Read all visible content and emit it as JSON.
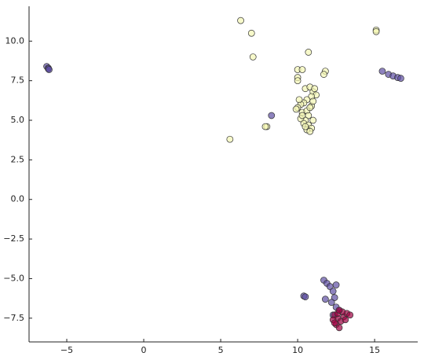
{
  "chart_data": {
    "type": "scatter",
    "xlim": [
      -7.45,
      17.8
    ],
    "ylim": [
      -9.0,
      12.2
    ],
    "xticks": [
      {
        "value": -5,
        "label": "−5"
      },
      0,
      5,
      10,
      15
    ],
    "yticks": [
      {
        "value": -7.5,
        "label": "−7.5"
      },
      {
        "value": -5,
        "label": "−5.0"
      },
      {
        "value": -2.5,
        "label": "−2.5"
      },
      {
        "value": 0,
        "label": "0.0"
      },
      2.5,
      {
        "value": 5,
        "label": "5.0"
      },
      7.5,
      {
        "value": 10,
        "label": "10.0"
      }
    ],
    "series": [
      {
        "color": "#f4f7b4",
        "x": [
          6.3,
          7.0,
          7.1,
          15.1,
          15.1,
          10.7,
          10.0,
          10.3,
          11.8,
          10.0,
          10.0,
          11.7,
          5.6,
          8.0,
          7.9,
          10.5,
          10.8,
          11.0,
          11.2,
          10.9,
          10.6,
          10.4,
          10.2,
          10.0,
          9.9,
          10.3,
          10.6,
          10.9,
          11.0,
          10.7,
          10.5,
          10.2,
          10.4,
          10.7,
          10.9,
          10.6,
          10.8,
          10.5,
          11.0,
          10.3,
          10.8,
          11.1,
          10.1
        ],
        "values": [
          11.3,
          10.5,
          9.0,
          10.7,
          10.6,
          9.3,
          8.2,
          8.2,
          8.1,
          7.7,
          7.5,
          7.9,
          3.8,
          4.6,
          4.6,
          7.0,
          7.1,
          6.8,
          6.6,
          6.5,
          6.3,
          6.1,
          6.0,
          5.8,
          5.7,
          5.5,
          5.6,
          5.9,
          6.2,
          5.3,
          5.0,
          5.1,
          4.8,
          4.7,
          4.5,
          4.4,
          4.3,
          4.6,
          5.0,
          5.3,
          5.8,
          7.0,
          6.3
        ]
      },
      {
        "color": "#5e4fa2",
        "x": [
          -6.3,
          -6.2,
          -6.2,
          -6.15,
          15.5,
          15.9,
          16.2,
          16.5,
          16.7,
          8.3,
          10.4,
          10.5,
          11.7,
          11.9,
          12.1,
          12.3,
          12.5,
          12.4,
          12.2,
          12.5,
          11.8,
          12.7,
          12.3
        ],
        "values": [
          8.4,
          8.3,
          8.25,
          8.2,
          8.1,
          7.9,
          7.8,
          7.7,
          7.65,
          5.3,
          -6.1,
          -6.15,
          -5.1,
          -5.3,
          -5.5,
          -5.8,
          -5.4,
          -6.2,
          -6.5,
          -6.8,
          -6.3,
          -7.0,
          -7.3
        ]
      },
      {
        "color": "#9e0142",
        "x": [
          12.4,
          12.6,
          12.8,
          12.5,
          12.7,
          13.0,
          13.2,
          13.4,
          12.3,
          12.9,
          12.6,
          13.1,
          12.4,
          12.7
        ],
        "values": [
          -7.3,
          -7.5,
          -7.7,
          -7.9,
          -8.1,
          -7.4,
          -7.2,
          -7.3,
          -7.6,
          -7.1,
          -7.2,
          -7.6,
          -7.8,
          -7.0
        ]
      }
    ]
  }
}
